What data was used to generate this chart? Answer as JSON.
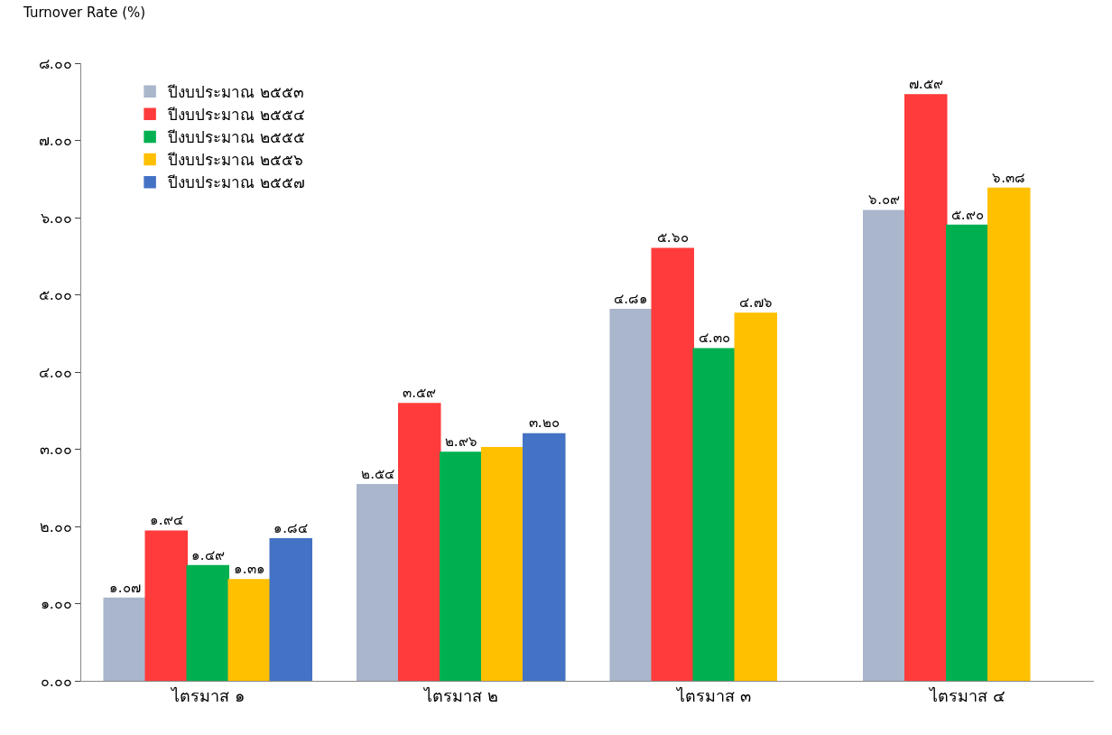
{
  "chart_data": {
    "type": "bar",
    "ylabel": "Turnover Rate (%)",
    "categories": [
      "ไตรมาส ๑",
      "ไตรมาส ๒",
      "ไตรมาส ๓",
      "ไตรมาส ๔"
    ],
    "series": [
      {
        "name": "ปีงบประมาณ ๒๕๕๓",
        "color": "#a9b6cc",
        "values": [
          1.07,
          2.54,
          4.81,
          6.09
        ],
        "value_labels": [
          "๑.๐๗",
          "๒.๕๔",
          "๔.๘๑",
          "๖.๐๙"
        ]
      },
      {
        "name": "ปีงบประมาณ ๒๕๕๔",
        "color": "#ff3b3b",
        "values": [
          1.94,
          3.59,
          5.6,
          7.59
        ],
        "value_labels": [
          "๑.๙๔",
          "๓.๕๙",
          "๕.๖๐",
          "๗.๕๙"
        ]
      },
      {
        "name": "ปีงบประมาณ ๒๕๕๕",
        "color": "#00b050",
        "values": [
          1.49,
          2.96,
          4.3,
          5.9
        ],
        "value_labels": [
          "๑.๔๙",
          "๒.๙๖",
          "๔.๓๐",
          "๕.๙๐"
        ]
      },
      {
        "name": "ปีงบประมาณ ๒๕๕๖",
        "color": "#ffc000",
        "values": [
          1.31,
          3.02,
          4.76,
          6.38
        ],
        "value_labels": [
          "๑.๓๑",
          null,
          "๔.๗๖",
          "๖.๓๘"
        ]
      },
      {
        "name": "ปีงบประมาณ ๒๕๕๗",
        "color": "#4472c4",
        "values": [
          1.84,
          3.2,
          null,
          null
        ],
        "value_labels": [
          "๑.๘๔",
          "๓.๒๐",
          null,
          null
        ]
      }
    ],
    "ylim": [
      0,
      8
    ],
    "yticks": [
      {
        "value": 0,
        "label": "๐.๐๐"
      },
      {
        "value": 1,
        "label": "๑.๐๐"
      },
      {
        "value": 2,
        "label": "๒.๐๐"
      },
      {
        "value": 3,
        "label": "๓.๐๐"
      },
      {
        "value": 4,
        "label": "๔.๐๐"
      },
      {
        "value": 5,
        "label": "๕.๐๐"
      },
      {
        "value": 6,
        "label": "๖.๐๐"
      },
      {
        "value": 7,
        "label": "๗.๐๐"
      },
      {
        "value": 8,
        "label": "๘.๐๐"
      }
    ],
    "legend": "top left"
  }
}
